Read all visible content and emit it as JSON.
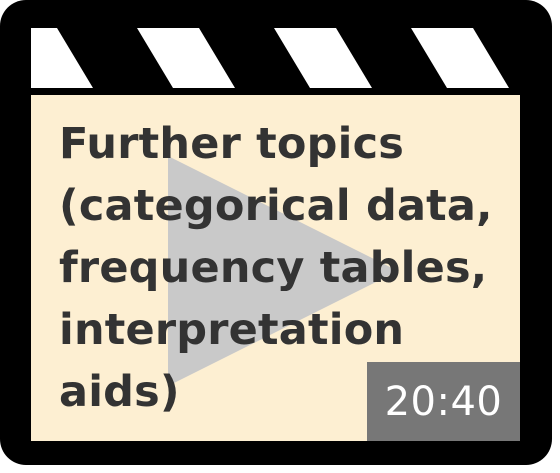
{
  "video": {
    "title_lines": [
      "Further topics",
      "(categorical data,",
      "frequency tables,",
      "interpretation",
      "aids)"
    ],
    "duration": "20:40"
  },
  "colors": {
    "frame": "#000000",
    "slate_background": "#fdefd2",
    "play_icon": "#c9c9c9",
    "title_text": "#333333",
    "badge_background": "#777777",
    "badge_text": "#ffffff"
  },
  "icons": {
    "frame": "clapperboard-icon",
    "play": "play-icon"
  }
}
